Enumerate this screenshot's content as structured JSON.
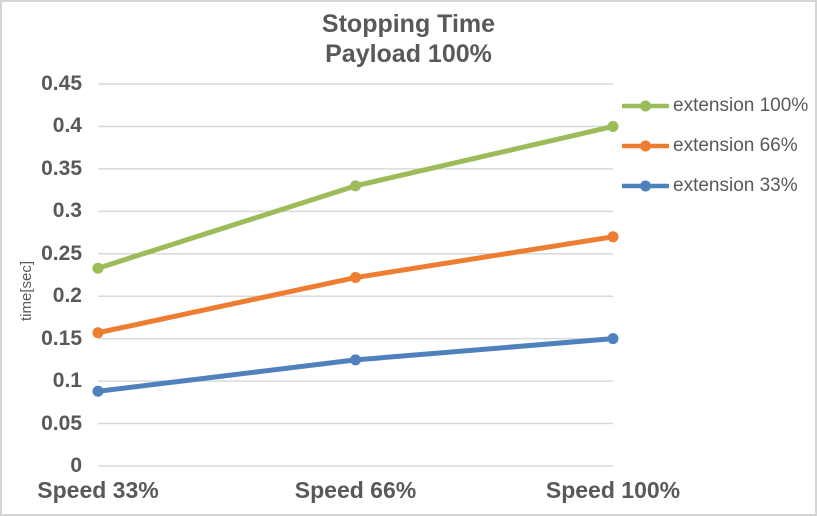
{
  "title": {
    "line1": "Stopping Time",
    "line2": "Payload 100%"
  },
  "colors": {
    "text": "#595959",
    "gridline": "#d9d9d9",
    "frame_border": "#d5d5d5",
    "background": "#ffffff"
  },
  "chart_data": {
    "type": "line",
    "title": "Stopping Time",
    "subtitle": "Payload 100%",
    "categories": [
      "Speed 33%",
      "Speed 66%",
      "Speed 100%"
    ],
    "series": [
      {
        "name": "extension 100%",
        "color": "#9cbb59",
        "values": [
          0.233,
          0.33,
          0.4
        ]
      },
      {
        "name": "extension 66%",
        "color": "#ed7d31",
        "values": [
          0.157,
          0.222,
          0.27
        ]
      },
      {
        "name": "extension 33%",
        "color": "#4f81bd",
        "values": [
          0.088,
          0.125,
          0.15
        ]
      }
    ],
    "xlabel": "",
    "ylabel": "time[sec]",
    "ylim": [
      0,
      0.45
    ],
    "ytick_step": 0.05,
    "grid": "horizontal",
    "legend_position": "right",
    "marker": "circle"
  }
}
